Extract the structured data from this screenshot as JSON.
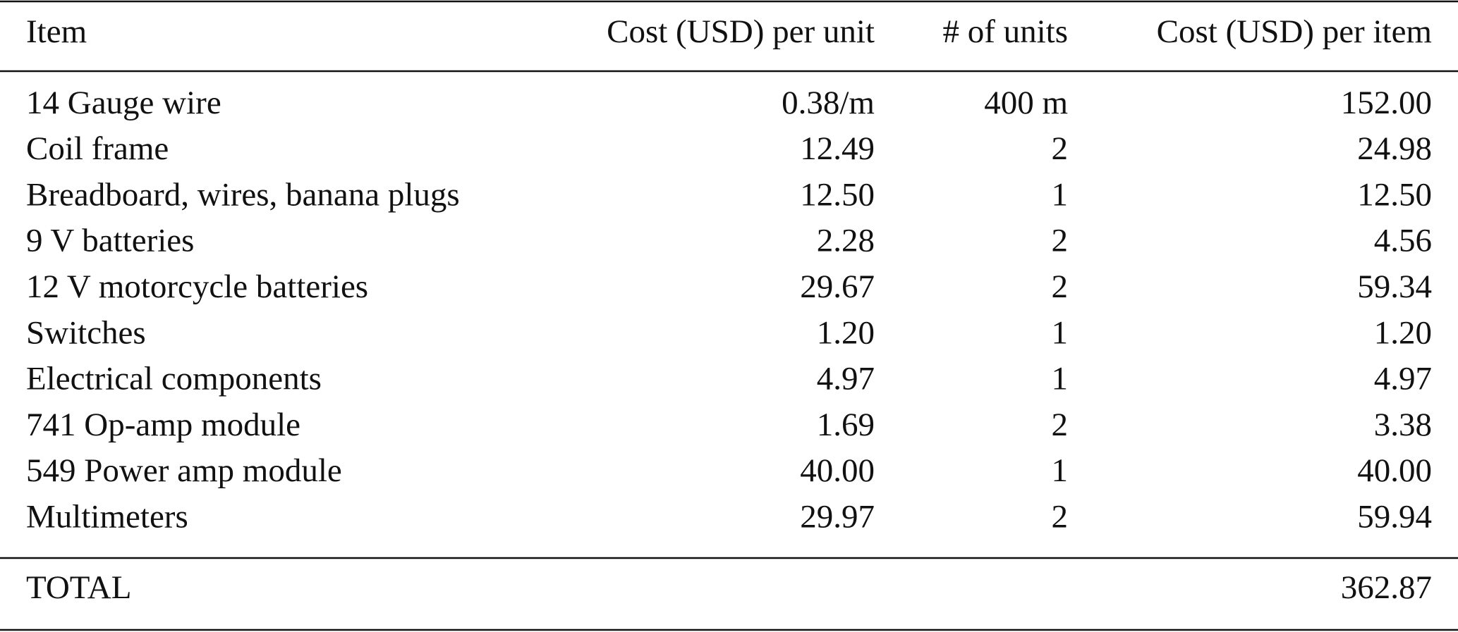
{
  "table": {
    "header": [
      "Item",
      "Cost (USD) per unit",
      "# of units",
      "Cost (USD) per item"
    ],
    "rows": [
      [
        "14 Gauge wire",
        "0.38/m",
        "400 m",
        "152.00"
      ],
      [
        "Coil frame",
        "12.49",
        "2",
        "24.98"
      ],
      [
        "Breadboard, wires, banana plugs",
        "12.50",
        "1",
        "12.50"
      ],
      [
        "9 V batteries",
        "2.28",
        "2",
        "4.56"
      ],
      [
        "12 V motorcycle batteries",
        "29.67",
        "2",
        "59.34"
      ],
      [
        "Switches",
        "1.20",
        "1",
        "1.20"
      ],
      [
        "Electrical components",
        "4.97",
        "1",
        "4.97"
      ],
      [
        "741 Op-amp module",
        "1.69",
        "2",
        "3.38"
      ],
      [
        "549 Power amp module",
        "40.00",
        "1",
        "40.00"
      ],
      [
        "Multimeters",
        "29.97",
        "2",
        "59.94"
      ]
    ],
    "total": {
      "label": "TOTAL",
      "value": "362.87"
    }
  }
}
